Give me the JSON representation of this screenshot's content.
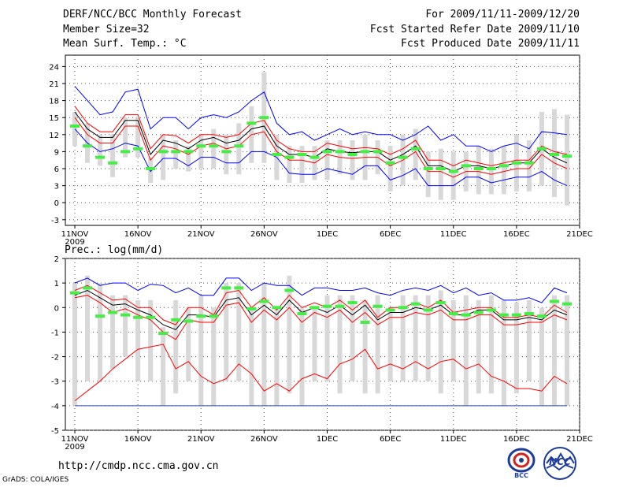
{
  "header": {
    "title": "DERF/NCC/BCC Monthly Forecast",
    "member": "Member Size=32",
    "variable": "Mean Surf. Temp.: °C",
    "period": "For 2009/11/11-2009/12/20",
    "started": "Fcst Started Refer Date 2009/11/10",
    "produced": "Fcst Produced Date 2009/11/11"
  },
  "footer": {
    "url": "http://cmdp.ncc.cma.gov.cn",
    "credit": "GrADS: COLA/IGES"
  },
  "logos": {
    "left": "BCC",
    "right": "NCC"
  },
  "colors": {
    "max_min": "#0000ff",
    "spread": "#ff0000",
    "mean": "#000000",
    "box": "#d8d8d8",
    "median": "#44ee44",
    "grid": "#555555"
  },
  "chart_data": [
    {
      "type": "line",
      "panel": "temperature",
      "title": "Mean Surf. Temp.: °C",
      "x_ticks": [
        "11NOV",
        "16NOV",
        "21NOV",
        "26NOV",
        "1DEC",
        "6DEC",
        "11DEC",
        "16DEC",
        "21DEC"
      ],
      "x_year": "2009",
      "ylim": [
        -4,
        26
      ],
      "y_ticks": [
        -3,
        0,
        3,
        6,
        9,
        12,
        15,
        18,
        21,
        24
      ],
      "series": [
        {
          "name": "max",
          "color": "#0000ff",
          "values": [
            20.5,
            18,
            15.5,
            16,
            19.5,
            20,
            13,
            15,
            15,
            13,
            15,
            15.5,
            15,
            16,
            18,
            19.5,
            14,
            12,
            12.5,
            11,
            12,
            13,
            12,
            12.5,
            12,
            12,
            11,
            12,
            13.5,
            11,
            12,
            10,
            10,
            9,
            10,
            10.5,
            9.5,
            12.5,
            12.3,
            12
          ]
        },
        {
          "name": "upper",
          "color": "#ff0000",
          "values": [
            17,
            14,
            12.5,
            12.5,
            15.5,
            15.5,
            9.5,
            12,
            11.8,
            10.5,
            12,
            12,
            11.5,
            12,
            14,
            14.5,
            11,
            9.5,
            9,
            9,
            10.5,
            10,
            9.5,
            9.7,
            9.5,
            8.5,
            9.5,
            11,
            7.5,
            7.5,
            6.5,
            7.5,
            7,
            6.5,
            7,
            7.5,
            7.5,
            10,
            9,
            8.5
          ]
        },
        {
          "name": "mean",
          "color": "#000000",
          "values": [
            16,
            13,
            11.5,
            11.5,
            14.5,
            14.5,
            8.5,
            11,
            10.5,
            9.5,
            11,
            11.5,
            10.5,
            11,
            13,
            13.5,
            10,
            8.5,
            8.5,
            8,
            9.5,
            9,
            8.8,
            9,
            9,
            7.5,
            8.5,
            10,
            6.5,
            6.5,
            5.5,
            6.5,
            6.5,
            6,
            6.5,
            7,
            7,
            9.5,
            8,
            7
          ]
        },
        {
          "name": "lower",
          "color": "#ff0000",
          "values": [
            15,
            12,
            10.5,
            10.5,
            13.5,
            13.5,
            7.5,
            10,
            9.5,
            8.5,
            10,
            10.5,
            9.5,
            10,
            12,
            12.5,
            9,
            7.5,
            7.5,
            7,
            8.5,
            8,
            7.8,
            8,
            8,
            6.5,
            7.5,
            9,
            5.5,
            5.5,
            4.5,
            5.5,
            5.5,
            5,
            5.5,
            6,
            6,
            8.5,
            7,
            6
          ]
        },
        {
          "name": "min",
          "color": "#0000ff",
          "values": [
            13,
            10.5,
            9,
            9.5,
            10.5,
            10,
            5.5,
            7.8,
            7.8,
            6.5,
            8,
            8,
            7,
            7,
            9,
            9,
            8,
            5.2,
            5,
            5,
            6,
            5.5,
            5,
            6.5,
            6.5,
            4,
            4.8,
            6,
            3,
            3,
            3,
            4.5,
            4.5,
            3.5,
            4,
            4.5,
            4.5,
            5.5,
            4,
            3
          ]
        },
        {
          "name": "median",
          "color": "#44ee44",
          "values": [
            13.5,
            10,
            8,
            7,
            9,
            9.5,
            6,
            9,
            9,
            9,
            10,
            10,
            9,
            10,
            14,
            15,
            8.5,
            8,
            8.5,
            8,
            9,
            9,
            8.5,
            9,
            9,
            7,
            8,
            9.5,
            6,
            6,
            5.5,
            6.5,
            6,
            6,
            6.5,
            7,
            7,
            9.5,
            8.5,
            8.2
          ]
        }
      ],
      "boxes": [
        [
          10,
          16
        ],
        [
          7,
          14
        ],
        [
          6.5,
          12
        ],
        [
          4.5,
          12
        ],
        [
          8,
          15
        ],
        [
          8,
          15
        ],
        [
          3.5,
          8
        ],
        [
          4,
          12
        ],
        [
          6,
          11
        ],
        [
          5.5,
          10
        ],
        [
          6,
          12
        ],
        [
          6,
          13
        ],
        [
          5,
          12
        ],
        [
          5,
          14
        ],
        [
          7,
          17
        ],
        [
          7,
          23
        ],
        [
          4,
          12
        ],
        [
          3.5,
          10
        ],
        [
          3.5,
          10
        ],
        [
          4,
          10
        ],
        [
          4,
          11
        ],
        [
          5,
          11
        ],
        [
          4,
          11
        ],
        [
          4,
          12
        ],
        [
          5,
          11
        ],
        [
          2,
          10
        ],
        [
          3,
          12
        ],
        [
          4,
          13
        ],
        [
          1,
          9
        ],
        [
          0.5,
          9.5
        ],
        [
          0.5,
          9
        ],
        [
          2,
          9
        ],
        [
          1.5,
          10
        ],
        [
          1.5,
          9.5
        ],
        [
          1.5,
          10
        ],
        [
          2,
          12
        ],
        [
          2,
          11
        ],
        [
          3,
          16
        ],
        [
          1,
          16.5
        ],
        [
          -0.5,
          15.5
        ]
      ]
    },
    {
      "type": "line",
      "panel": "precipitation",
      "title": "Prec.: log(mm/d)",
      "x_ticks": [
        "11NOV",
        "16NOV",
        "21NOV",
        "26NOV",
        "1DEC",
        "6DEC",
        "11DEC",
        "16DEC",
        "21DEC"
      ],
      "x_year": "2009",
      "ylim": [
        -5,
        2
      ],
      "y_ticks": [
        -5,
        -4,
        -3,
        -2,
        -1,
        0,
        1,
        2
      ],
      "series": [
        {
          "name": "max",
          "color": "#0000ff",
          "values": [
            1,
            1.2,
            0.9,
            1,
            1,
            0.7,
            0.95,
            0.9,
            0.6,
            0.8,
            0.5,
            0.5,
            1.2,
            1.2,
            0.7,
            1,
            0.9,
            0.9,
            0.5,
            0.8,
            0.8,
            0.7,
            0.7,
            0.8,
            0.6,
            0.5,
            0.7,
            0.8,
            0.7,
            0.9,
            0.6,
            0.8,
            0.5,
            0.6,
            0.3,
            0.3,
            0.4,
            0.2,
            0.8,
            0.6
          ]
        },
        {
          "name": "upper",
          "color": "#ff0000",
          "values": [
            0.7,
            0.9,
            0.6,
            0.3,
            0.35,
            0,
            0,
            -0.5,
            -0.7,
            0,
            0,
            -0.3,
            0.6,
            0.7,
            0,
            0.4,
            -0.1,
            0.5,
            0,
            0.2,
            0,
            0.3,
            -0.1,
            0.3,
            -0.4,
            0,
            0,
            0.2,
            0,
            0.3,
            -0.2,
            -0.1,
            0,
            0,
            -0.4,
            -0.4,
            -0.3,
            -0.4,
            0.1,
            -0.2
          ]
        },
        {
          "name": "mean",
          "color": "#000000",
          "values": [
            0.5,
            0.7,
            0.4,
            0.1,
            0.15,
            -0.1,
            -0.3,
            -0.7,
            -0.9,
            -0.3,
            -0.3,
            -0.4,
            0.3,
            0.4,
            -0.3,
            0.1,
            -0.3,
            0.3,
            -0.2,
            0,
            -0.2,
            0.1,
            -0.3,
            0.1,
            -0.5,
            -0.2,
            -0.2,
            0,
            -0.1,
            0.1,
            -0.3,
            -0.3,
            -0.1,
            -0.1,
            -0.5,
            -0.5,
            -0.4,
            -0.5,
            -0.1,
            -0.3
          ]
        },
        {
          "name": "lower",
          "color": "#ff0000",
          "values": [
            0.4,
            0.5,
            0.2,
            -0.2,
            -0.05,
            -0.3,
            -0.5,
            -1,
            -1.3,
            -0.5,
            -0.6,
            -0.6,
            0.1,
            0.2,
            -0.6,
            -0.1,
            -0.5,
            0,
            -0.6,
            -0.2,
            -0.4,
            -0.1,
            -0.6,
            -0.2,
            -0.7,
            -0.4,
            -0.4,
            -0.2,
            -0.3,
            -0.1,
            -0.5,
            -0.5,
            -0.3,
            -0.3,
            -0.7,
            -0.7,
            -0.6,
            -0.6,
            -0.3,
            -0.5
          ]
        },
        {
          "name": "min",
          "color": "#ff0000",
          "values": [
            -3.8,
            -3.4,
            -3,
            -2.5,
            -2.1,
            -1.7,
            -1.6,
            -1.5,
            -2.5,
            -2.2,
            -2.8,
            -3.1,
            -2.9,
            -2.3,
            -2.7,
            -3.4,
            -3.1,
            -3.4,
            -2.9,
            -2.7,
            -2.9,
            -2.3,
            -2.1,
            -1.7,
            -2.5,
            -2.3,
            -2.5,
            -2.2,
            -2.5,
            -2.2,
            -2.1,
            -2.5,
            -2.3,
            -2.8,
            -3,
            -3.3,
            -3.3,
            -3.4,
            -2.8,
            -3.1
          ]
        },
        {
          "name": "median",
          "color": "#44ee44",
          "values": [
            0.6,
            0.8,
            -0.35,
            -0.2,
            -0.3,
            -0.4,
            -0.4,
            -1.05,
            -0.5,
            -0.55,
            -0.35,
            -0.35,
            0.8,
            0.8,
            -0.05,
            0.25,
            0,
            0.7,
            -0.25,
            0,
            0.05,
            0.05,
            0.2,
            -0.6,
            0.05,
            -0.1,
            0,
            0.15,
            -0.1,
            0.2,
            -0.25,
            -0.3,
            -0.2,
            -0.1,
            -0.3,
            -0.3,
            -0.25,
            -0.35,
            0.25,
            0.15
          ]
        }
      ],
      "floor_line": -4,
      "boxes": [
        [
          -4,
          1
        ],
        [
          -3,
          1.3
        ],
        [
          -3,
          1
        ],
        [
          -2.5,
          0.5
        ],
        [
          -2,
          0.5
        ],
        [
          -3,
          0.3
        ],
        [
          -3,
          0.3
        ],
        [
          -4,
          -0.8
        ],
        [
          -3.5,
          0.3
        ],
        [
          -3,
          0
        ],
        [
          -4,
          0.5
        ],
        [
          -4,
          0
        ],
        [
          -3,
          1
        ],
        [
          -3,
          1
        ],
        [
          -4,
          0
        ],
        [
          -4,
          1
        ],
        [
          -4,
          0
        ],
        [
          -3.5,
          1.3
        ],
        [
          -4,
          0
        ],
        [
          -3,
          0
        ],
        [
          -3,
          0.5
        ],
        [
          -3.5,
          0.5
        ],
        [
          -3,
          0.5
        ],
        [
          -3.5,
          0.3
        ],
        [
          -3.5,
          0.5
        ],
        [
          -3,
          0
        ],
        [
          -3,
          0.5
        ],
        [
          -3,
          0.5
        ],
        [
          -3,
          0.5
        ],
        [
          -3.5,
          0.7
        ],
        [
          -3,
          0.3
        ],
        [
          -4,
          0.5
        ],
        [
          -3.5,
          0.3
        ],
        [
          -3.5,
          0.5
        ],
        [
          -4,
          0.3
        ],
        [
          -3.5,
          0.2
        ],
        [
          -3,
          0.3
        ],
        [
          -4,
          0
        ],
        [
          -4,
          0.5
        ],
        [
          -4,
          0.5
        ]
      ]
    }
  ]
}
